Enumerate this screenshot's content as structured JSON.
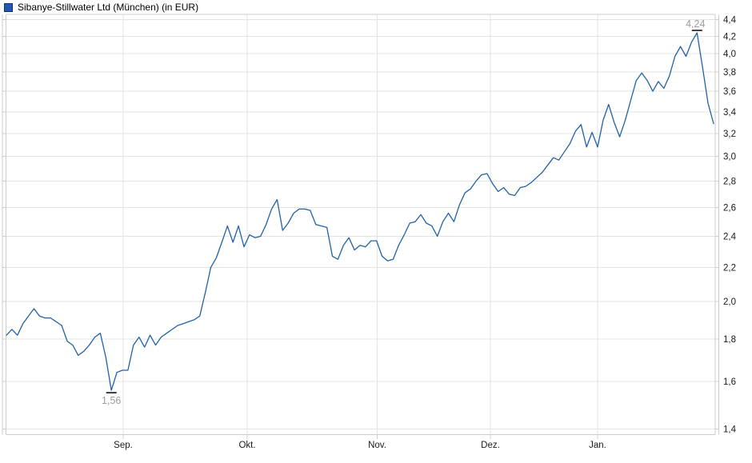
{
  "header": {
    "title": "Sibanye-Stillwater Ltd (München) (in EUR)"
  },
  "chart_data": {
    "type": "line",
    "title": "Sibanye-Stillwater Ltd (München) (in EUR)",
    "y_axis": {
      "scale": "log",
      "unit": "EUR",
      "position": "right",
      "min": 1.4,
      "max": 4.4,
      "tick_step": 0.2,
      "ticks": [
        1.4,
        1.6,
        1.8,
        2.0,
        2.2,
        2.4,
        2.6,
        2.8,
        3.0,
        3.2,
        3.4,
        3.6,
        3.8,
        4.0,
        4.2,
        4.4
      ],
      "tick_labels": [
        "1,4",
        "1,6",
        "1,8",
        "2,0",
        "2,2",
        "2,4",
        "2,6",
        "2,8",
        "3,0",
        "3,2",
        "3,4",
        "3,6",
        "3,8",
        "4,0",
        "4,2",
        "4,4"
      ]
    },
    "x_axis": {
      "tick_labels": [
        "Sep.",
        "Okt.",
        "Nov.",
        "Dez.",
        "Jan."
      ]
    },
    "grid": true,
    "legend_position": "top-left",
    "series": [
      {
        "name": "Sibanye-Stillwater Ltd (München)",
        "color": "#2061A9",
        "values": [
          1.82,
          1.85,
          1.82,
          1.88,
          1.92,
          1.96,
          1.92,
          1.91,
          1.91,
          1.89,
          1.87,
          1.79,
          1.77,
          1.72,
          1.74,
          1.77,
          1.81,
          1.83,
          1.71,
          1.56,
          1.64,
          1.65,
          1.65,
          1.77,
          1.81,
          1.76,
          1.82,
          1.77,
          1.81,
          1.83,
          1.85,
          1.87,
          1.88,
          1.89,
          1.9,
          1.92,
          2.05,
          2.2,
          2.26,
          2.36,
          2.47,
          2.36,
          2.47,
          2.33,
          2.41,
          2.39,
          2.4,
          2.48,
          2.59,
          2.66,
          2.44,
          2.49,
          2.56,
          2.59,
          2.59,
          2.58,
          2.48,
          2.47,
          2.46,
          2.27,
          2.25,
          2.34,
          2.39,
          2.31,
          2.34,
          2.33,
          2.37,
          2.37,
          2.27,
          2.24,
          2.25,
          2.34,
          2.41,
          2.49,
          2.5,
          2.55,
          2.49,
          2.47,
          2.4,
          2.5,
          2.56,
          2.5,
          2.62,
          2.71,
          2.74,
          2.8,
          2.85,
          2.86,
          2.78,
          2.72,
          2.75,
          2.7,
          2.69,
          2.75,
          2.76,
          2.79,
          2.83,
          2.87,
          2.93,
          2.99,
          2.97,
          3.04,
          3.11,
          3.22,
          3.28,
          3.08,
          3.21,
          3.08,
          3.32,
          3.47,
          3.3,
          3.17,
          3.32,
          3.51,
          3.71,
          3.79,
          3.71,
          3.6,
          3.7,
          3.63,
          3.76,
          3.97,
          4.08,
          3.97,
          4.13,
          4.24,
          3.85,
          3.48,
          3.29
        ]
      }
    ],
    "annotations": {
      "high": {
        "label": "4,24",
        "value": 4.24,
        "index": 125
      },
      "low": {
        "label": "1,56",
        "value": 1.56,
        "index": 19
      }
    },
    "colors": {
      "line": "#2061A9",
      "grid": "#E3E3E3",
      "frame": "#CCCCCC",
      "axis_text": "#1A1A1A",
      "annotation_text": "#9C9C9C",
      "annotation_tick": "#111111"
    }
  }
}
